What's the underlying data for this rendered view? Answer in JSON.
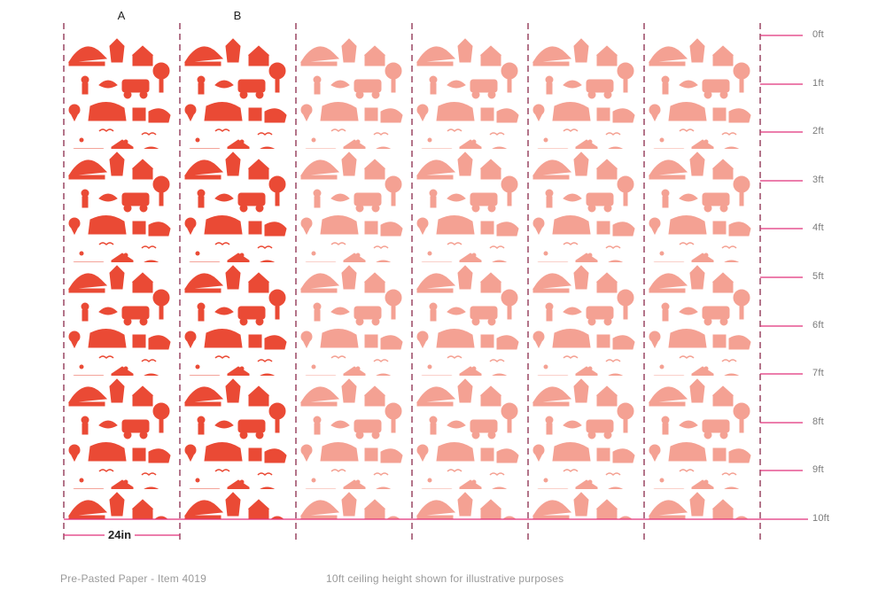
{
  "panel_labels": [
    "A",
    "B"
  ],
  "height_markers": [
    "0ft",
    "1ft",
    "2ft",
    "3ft",
    "4ft",
    "5ft",
    "6ft",
    "7ft",
    "8ft",
    "9ft",
    "10ft"
  ],
  "panel_width_label": "24in",
  "footer": {
    "product": "Pre-Pasted Paper - Item 4019",
    "note": "10ft ceiling height shown for illustrative purposes"
  },
  "colors": {
    "pattern_primary": "#e8361f",
    "pattern_faded": "#f1826f",
    "guide_dash": "#8a2a4a",
    "height_marker": "#e0317a"
  }
}
